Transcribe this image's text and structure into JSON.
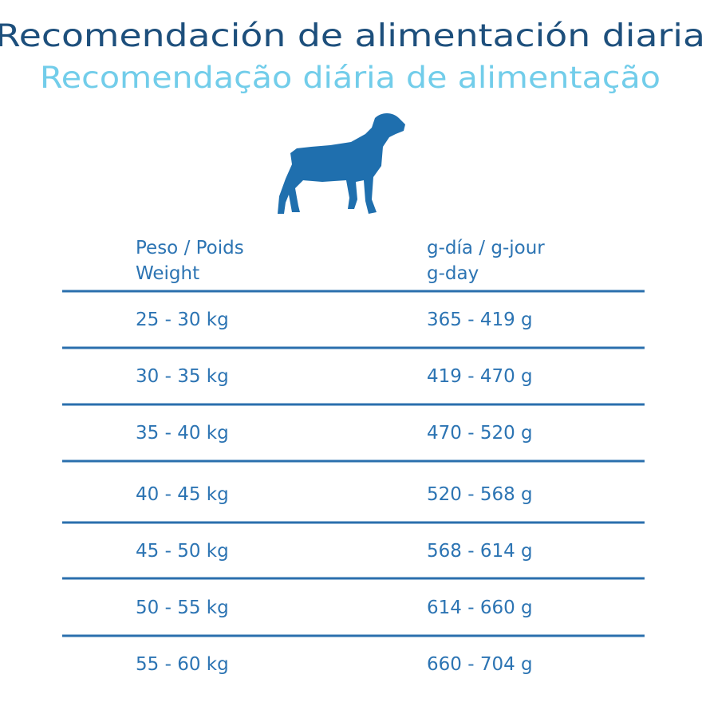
{
  "header": {
    "title": "Recomendación de alimentación diaria",
    "subtitle": "Recomendação diária de alimentação"
  },
  "table": {
    "columns": [
      [
        "Peso / Poids",
        "Weight"
      ],
      [
        "g-día /  g-jour",
        "g-day"
      ]
    ],
    "rows": [
      [
        "25 - 30 kg",
        "365 - 419 g"
      ],
      [
        "30 - 35 kg",
        "419 - 470 g"
      ],
      [
        "35 - 40 kg",
        "470 - 520 g"
      ],
      [
        "40 - 45 kg",
        "520 - 568 g"
      ],
      [
        "45 - 50 kg",
        "568 - 614 g"
      ],
      [
        "50 - 55 kg",
        "614 - 660 g"
      ],
      [
        "55 - 60 kg",
        "660 - 704 g"
      ]
    ]
  }
}
